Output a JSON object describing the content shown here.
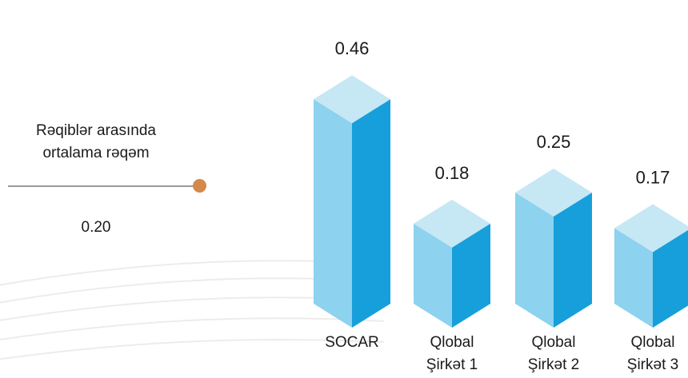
{
  "average": {
    "label_lines": [
      "Rəqiblər arasında",
      "ortalama rəqəm"
    ],
    "value": "0.20",
    "dot_color": "#D4894A"
  },
  "chart_data": {
    "type": "bar",
    "title": "",
    "xlabel": "",
    "ylabel": "",
    "categories": [
      [
        "SOCAR"
      ],
      [
        "Qlobal",
        "Şirkət 1"
      ],
      [
        "Qlobal",
        "Şirkət 2"
      ],
      [
        "Qlobal",
        "Şirkət 3"
      ]
    ],
    "values": [
      0.46,
      0.18,
      0.25,
      0.17
    ],
    "value_labels": [
      "0.46",
      "0.18",
      "0.25",
      "0.17"
    ],
    "ylim": [
      0,
      0.5
    ],
    "grid": false,
    "colors": {
      "top": "#C6E7F4",
      "left": "#8DD2EE",
      "right": "#169FDB"
    }
  }
}
